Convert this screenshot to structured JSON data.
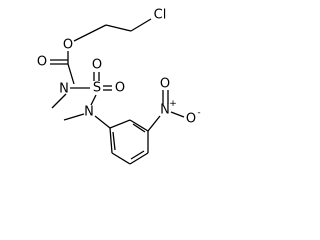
{
  "atoms": {
    "chlorine": "Cl",
    "ester_oxygen": "O",
    "carbonyl_oxygen": "O",
    "carbamate_nitrogen": "N",
    "sulfur": "S",
    "sulfonyl_oxygen_top": "O",
    "sulfonyl_oxygen_right": "O",
    "amine_nitrogen": "N",
    "nitro_nitrogen": "N",
    "nitro_nitrogen_charge": "+",
    "nitro_oxygen_top": "O",
    "nitro_oxygen_right": "O",
    "nitro_oxygen_charge": "-"
  }
}
